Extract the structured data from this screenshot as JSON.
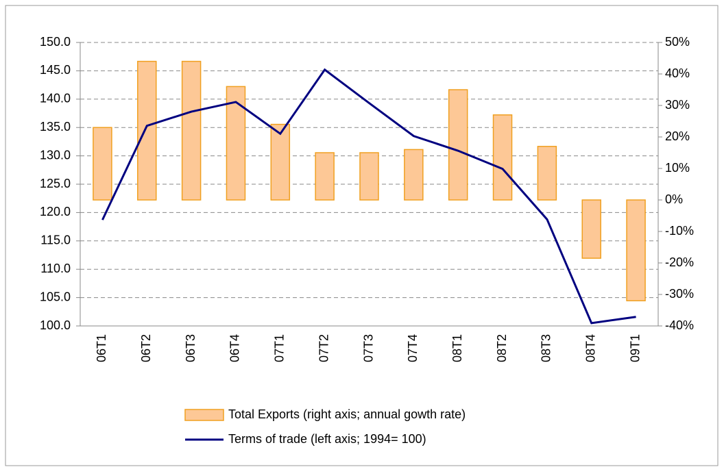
{
  "chart_data": {
    "type": "bar-line",
    "categories": [
      "06T1",
      "06T2",
      "06T3",
      "06T4",
      "07T1",
      "07T2",
      "07T3",
      "07T4",
      "08T1",
      "08T2",
      "08T3",
      "08T4",
      "09T1"
    ],
    "series": [
      {
        "name": "Total Exports (right axis; annual gowth rate)",
        "type": "bar",
        "axis": "y2",
        "color": "#fdc896",
        "edge": "#f0a020",
        "values": [
          23,
          44,
          44,
          36,
          24,
          15,
          15,
          16,
          35,
          27,
          17,
          -18.5,
          -32
        ]
      },
      {
        "name": "Terms of trade (left axis; 1994= 100)",
        "type": "line",
        "axis": "y",
        "color": "#000080",
        "values": [
          118.7,
          135.3,
          137.8,
          139.5,
          133.9,
          145.2,
          139.3,
          133.5,
          130.9,
          127.7,
          118.8,
          100.5,
          101.6
        ]
      }
    ],
    "ylim": [
      100,
      150
    ],
    "yticks": [
      {
        "value": 100,
        "label": "100.0"
      },
      {
        "value": 105,
        "label": "105.0"
      },
      {
        "value": 110,
        "label": "110.0"
      },
      {
        "value": 115,
        "label": "115.0"
      },
      {
        "value": 120,
        "label": "120.0"
      },
      {
        "value": 125,
        "label": "125.0"
      },
      {
        "value": 130,
        "label": "130.0"
      },
      {
        "value": 135,
        "label": "135.0"
      },
      {
        "value": 140,
        "label": "140.0"
      },
      {
        "value": 145,
        "label": "145.0"
      },
      {
        "value": 150,
        "label": "150.0"
      }
    ],
    "y2lim": [
      -40,
      50
    ],
    "y2ticks": [
      {
        "value": -40,
        "label": "-40%"
      },
      {
        "value": -30,
        "label": "-30%"
      },
      {
        "value": -20,
        "label": "-20%"
      },
      {
        "value": -10,
        "label": "-10%"
      },
      {
        "value": 0,
        "label": "0%"
      },
      {
        "value": 10,
        "label": "10%"
      },
      {
        "value": 20,
        "label": "20%"
      },
      {
        "value": 30,
        "label": "30%"
      },
      {
        "value": 40,
        "label": "40%"
      },
      {
        "value": 50,
        "label": "50%"
      }
    ],
    "grid": true
  }
}
